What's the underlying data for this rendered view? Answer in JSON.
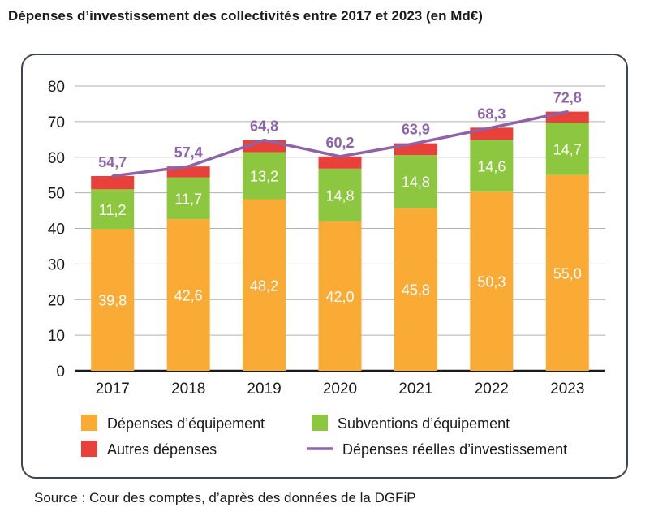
{
  "title": "Dépenses d’investissement des collectivités entre 2017 et 2023 (en Md€)",
  "source": "Source : Cour des comptes, d’après des données de la DGFiP",
  "colors": {
    "equipement": "#f9ab35",
    "subventions": "#8dc63f",
    "autres": "#e8403a",
    "line": "#8e63a8",
    "grid": "#b0b0b0",
    "axis": "#1a1a1a"
  },
  "chart_data": {
    "type": "bar",
    "stacked": true,
    "title": "Dépenses d’investissement des collectivités entre 2017 et 2023 (en Md€)",
    "categories": [
      "2017",
      "2018",
      "2019",
      "2020",
      "2021",
      "2022",
      "2023"
    ],
    "ylim": [
      0,
      80
    ],
    "yticks": [
      "0",
      "10",
      "20",
      "30",
      "40",
      "50",
      "60",
      "70",
      "80"
    ],
    "grid": true,
    "legend_position": "bottom",
    "series": [
      {
        "name": "Dépenses d’équipement",
        "key": "equipement",
        "values": [
          39.8,
          42.6,
          48.2,
          42.0,
          45.8,
          50.3,
          55.0
        ],
        "labels": [
          "39,8",
          "42,6",
          "48,2",
          "42,0",
          "45,8",
          "50,3",
          "55,0"
        ]
      },
      {
        "name": "Subventions d’équipement",
        "key": "subventions",
        "values": [
          11.2,
          11.7,
          13.2,
          14.8,
          14.8,
          14.6,
          14.7
        ],
        "labels": [
          "11,2",
          "11,7",
          "13,2",
          "14,8",
          "14,8",
          "14,6",
          "14,7"
        ]
      },
      {
        "name": "Autres dépenses",
        "key": "autres",
        "values": [
          3.7,
          3.1,
          3.4,
          3.4,
          3.3,
          3.4,
          3.1
        ]
      }
    ],
    "line_series": {
      "name": "Dépenses réelles d’investissement",
      "key": "line",
      "values": [
        54.7,
        57.4,
        64.8,
        60.2,
        63.9,
        68.3,
        72.8
      ],
      "labels": [
        "54,7",
        "57,4",
        "64,8",
        "60,2",
        "63,9",
        "68,3",
        "72,8"
      ]
    }
  }
}
